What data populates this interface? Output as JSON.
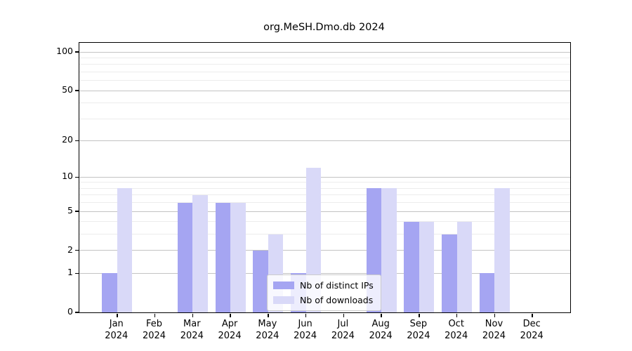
{
  "chart_data": {
    "type": "bar",
    "title": "org.MeSH.Dmo.db 2024",
    "categories": [
      "Jan 2024",
      "Feb 2024",
      "Mar 2024",
      "Apr 2024",
      "May 2024",
      "Jun 2024",
      "Jul 2024",
      "Aug 2024",
      "Sep 2024",
      "Oct 2024",
      "Nov 2024",
      "Dec 2024"
    ],
    "month_line1": [
      "Jan",
      "Feb",
      "Mar",
      "Apr",
      "May",
      "Jun",
      "Jul",
      "Aug",
      "Sep",
      "Oct",
      "Nov",
      "Dec"
    ],
    "month_line2": [
      "2024",
      "2024",
      "2024",
      "2024",
      "2024",
      "2024",
      "2024",
      "2024",
      "2024",
      "2024",
      "2024",
      "2024"
    ],
    "series": [
      {
        "name": "Nb of distinct IPs",
        "values": [
          1,
          0,
          6,
          6,
          2,
          1,
          0,
          8,
          4,
          3,
          1,
          0
        ],
        "color": "#a5a5f2"
      },
      {
        "name": "Nb of downloads",
        "values": [
          8,
          0,
          7,
          6,
          3,
          12,
          0,
          8,
          4,
          4,
          8,
          0
        ],
        "color": "#d9d9f8"
      }
    ],
    "xlabel": "",
    "ylabel": "",
    "y_scale": "log1p",
    "ylim": [
      0,
      118
    ],
    "y_ticks": [
      0,
      1,
      2,
      5,
      10,
      20,
      50,
      100
    ],
    "y_minor_ticks": [
      3,
      4,
      6,
      7,
      8,
      9,
      30,
      40,
      60,
      70,
      80,
      90
    ],
    "grid": "horizontal",
    "legend_position": "lower center"
  },
  "legend": {
    "ips_label": "Nb of distinct IPs",
    "downloads_label": "Nb of downloads"
  },
  "colors": {
    "ips_bar": "#a5a5f2",
    "downloads_bar": "#d9d9f8",
    "major_grid": "#c3c3c3",
    "minor_grid": "#ececec",
    "axis": "#000000"
  }
}
